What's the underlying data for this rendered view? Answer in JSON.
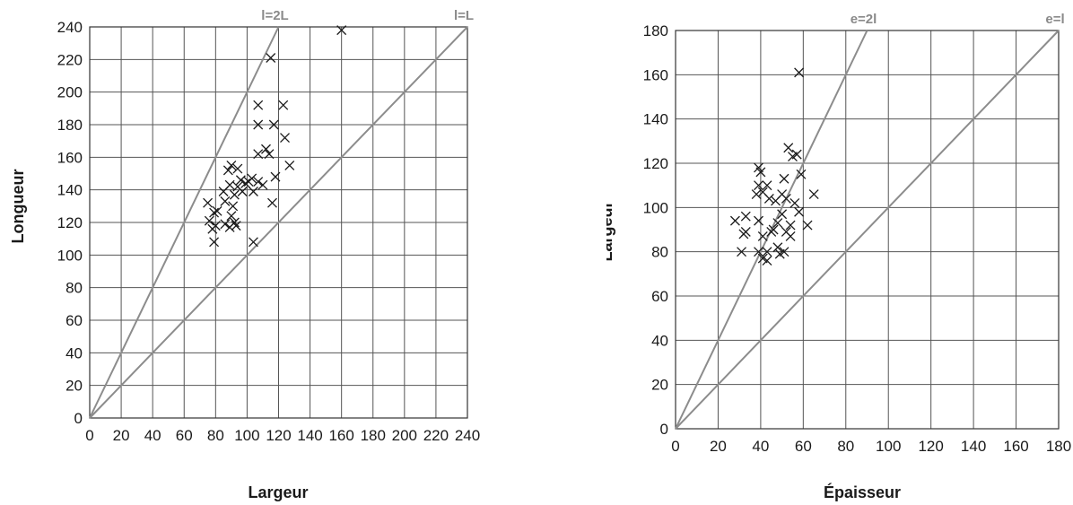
{
  "chart_data": [
    {
      "type": "scatter",
      "xlabel": "Largeur",
      "ylabel": "Longueur",
      "xlim": [
        0,
        240
      ],
      "ylim": [
        0,
        240
      ],
      "xticks": [
        0,
        20,
        40,
        60,
        80,
        100,
        120,
        140,
        160,
        180,
        200,
        220,
        240
      ],
      "yticks": [
        0,
        20,
        40,
        60,
        80,
        100,
        120,
        140,
        160,
        180,
        200,
        220,
        240
      ],
      "grid": true,
      "reference_lines": [
        {
          "label": "l=2L",
          "slope": 2
        },
        {
          "label": "l=L",
          "slope": 1
        }
      ],
      "points": [
        [
          160,
          238
        ],
        [
          115,
          221
        ],
        [
          107,
          192
        ],
        [
          123,
          192
        ],
        [
          107,
          180
        ],
        [
          117,
          180
        ],
        [
          124,
          172
        ],
        [
          107,
          162
        ],
        [
          112,
          165
        ],
        [
          114,
          162
        ],
        [
          127,
          155
        ],
        [
          90,
          155
        ],
        [
          94,
          153
        ],
        [
          88,
          152
        ],
        [
          118,
          148
        ],
        [
          103,
          147
        ],
        [
          107,
          145
        ],
        [
          110,
          143
        ],
        [
          96,
          146
        ],
        [
          99,
          144
        ],
        [
          89,
          143
        ],
        [
          94,
          142
        ],
        [
          85,
          139
        ],
        [
          97,
          139
        ],
        [
          104,
          139
        ],
        [
          92,
          137
        ],
        [
          86,
          133
        ],
        [
          75,
          132
        ],
        [
          116,
          132
        ],
        [
          91,
          130
        ],
        [
          79,
          126
        ],
        [
          81,
          127
        ],
        [
          90,
          124
        ],
        [
          76,
          121
        ],
        [
          92,
          120
        ],
        [
          86,
          119
        ],
        [
          89,
          117
        ],
        [
          80,
          118
        ],
        [
          78,
          116
        ],
        [
          93,
          118
        ],
        [
          79,
          108
        ],
        [
          104,
          108
        ],
        [
          101,
          145
        ]
      ]
    },
    {
      "type": "scatter",
      "xlabel": "Épaisseur",
      "ylabel": "Largeur",
      "xlim": [
        0,
        180
      ],
      "ylim": [
        0,
        180
      ],
      "xticks": [
        0,
        20,
        40,
        60,
        80,
        100,
        120,
        140,
        160,
        180
      ],
      "yticks": [
        0,
        20,
        40,
        60,
        80,
        100,
        120,
        140,
        160,
        180
      ],
      "grid": true,
      "reference_lines": [
        {
          "label": "e=2l",
          "slope": 2
        },
        {
          "label": "e=l",
          "slope": 1
        }
      ],
      "points": [
        [
          58,
          161
        ],
        [
          53,
          127
        ],
        [
          57,
          124
        ],
        [
          55,
          123
        ],
        [
          39,
          118
        ],
        [
          40,
          116
        ],
        [
          59,
          115
        ],
        [
          51,
          113
        ],
        [
          39,
          110
        ],
        [
          43,
          110
        ],
        [
          41,
          107
        ],
        [
          38,
          106
        ],
        [
          50,
          106
        ],
        [
          65,
          106
        ],
        [
          44,
          104
        ],
        [
          47,
          103
        ],
        [
          52,
          104
        ],
        [
          56,
          102
        ],
        [
          58,
          98
        ],
        [
          28,
          94
        ],
        [
          33,
          96
        ],
        [
          39,
          94
        ],
        [
          48,
          93
        ],
        [
          54,
          92
        ],
        [
          62,
          92
        ],
        [
          45,
          89
        ],
        [
          33,
          89
        ],
        [
          32,
          88
        ],
        [
          52,
          89
        ],
        [
          41,
          87
        ],
        [
          46,
          90
        ],
        [
          54,
          87
        ],
        [
          48,
          82
        ],
        [
          31,
          80
        ],
        [
          39,
          80
        ],
        [
          43,
          80
        ],
        [
          51,
          80
        ],
        [
          41,
          77
        ],
        [
          43,
          76
        ],
        [
          49,
          79
        ],
        [
          50,
          97
        ]
      ]
    }
  ]
}
